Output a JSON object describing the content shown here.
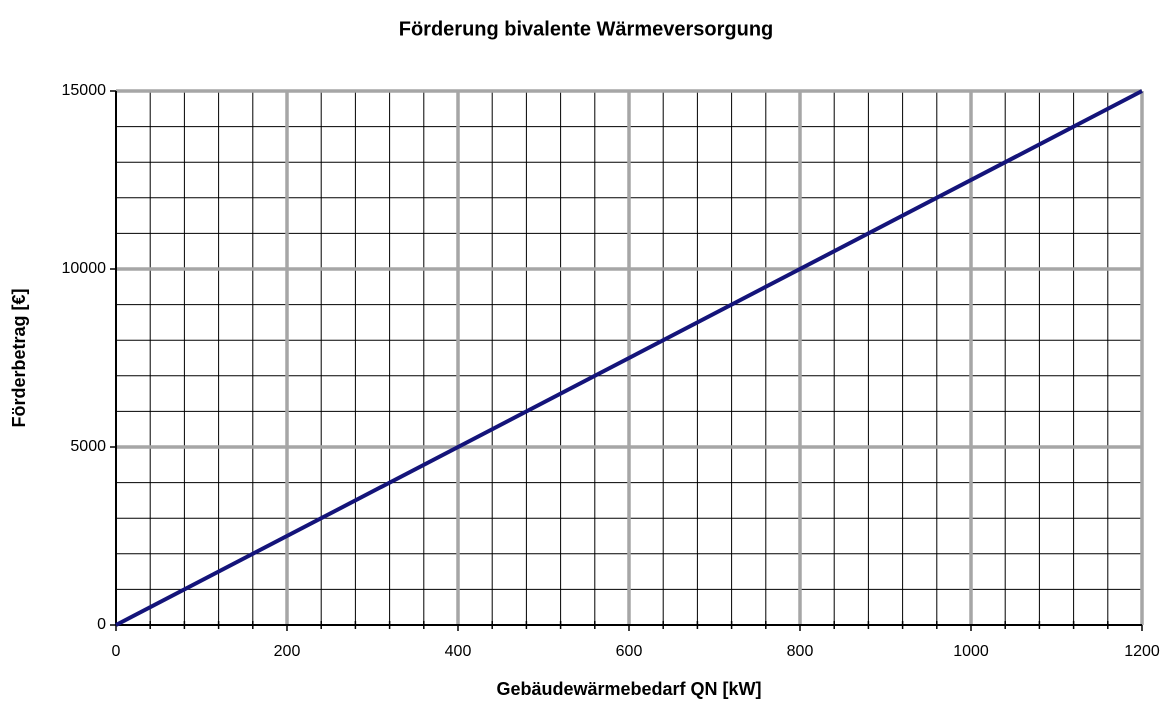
{
  "chart_data": {
    "type": "line",
    "title": "Förderung bivalente Wärmeversorgung",
    "x_label": "Gebäudewärmebedarf QN [kW]",
    "y_label": "Förderbetrag [€]",
    "x": [
      0,
      1200
    ],
    "series": [
      {
        "name": "Förderbetrag",
        "color": "#14147a",
        "values": [
          0,
          15000
        ]
      }
    ],
    "xlim": [
      0,
      1200
    ],
    "xticks": [
      0,
      200,
      400,
      600,
      800,
      1000,
      1200
    ],
    "ylim": [
      0,
      15000
    ],
    "yticks": [
      0,
      5000,
      10000,
      15000
    ],
    "grid": true,
    "major_grid_color": "#a6a6a6"
  }
}
